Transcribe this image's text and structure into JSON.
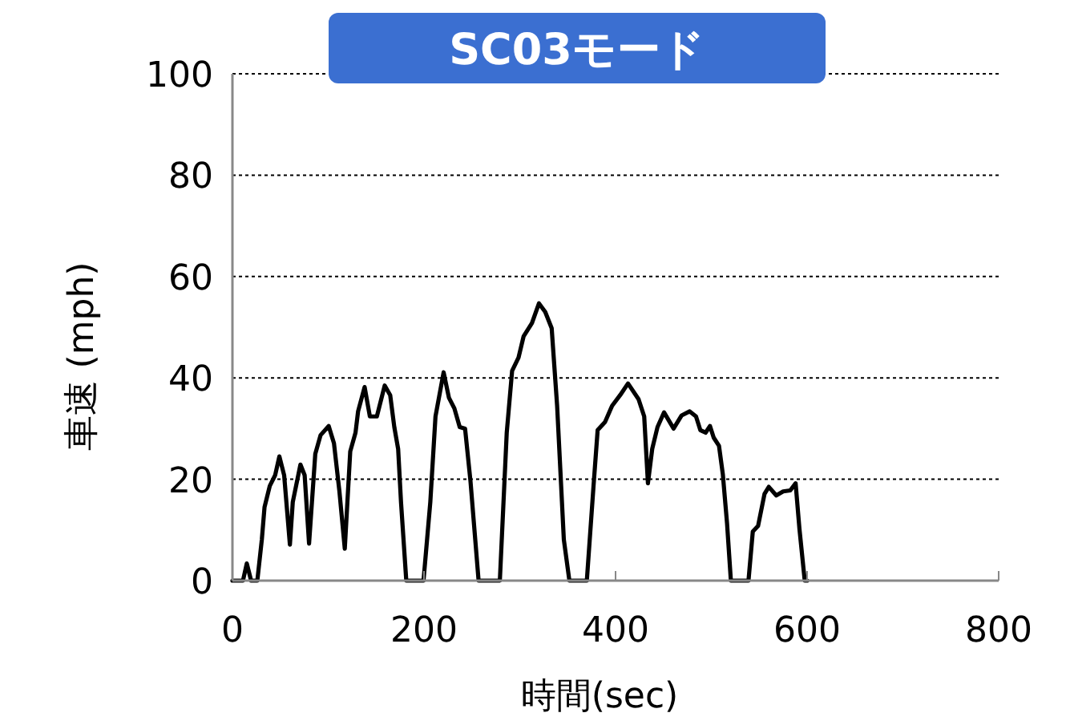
{
  "chart_data": {
    "type": "line",
    "title": "SC03モード",
    "xlabel": "時間(sec)",
    "ylabel": "車速 (mph)",
    "xlim": [
      0,
      800
    ],
    "xticks": [
      0,
      200,
      400,
      600,
      800
    ],
    "ylim": [
      0,
      100
    ],
    "yticks": [
      0,
      20,
      40,
      60,
      80,
      100
    ],
    "grid": "y",
    "line_style": "solid",
    "series": [
      {
        "color": "#000000",
        "x": [
          0,
          11,
          15,
          19.5,
          26,
          30.7,
          33.5,
          39,
          44.6,
          49,
          54,
          60,
          63,
          71,
          75.4,
          80,
          86.5,
          92,
          100.5,
          106,
          111.7,
          117.3,
          123,
          128.5,
          131.2,
          138,
          143.5,
          150.8,
          159,
          164.7,
          169,
          173,
          176,
          181.5,
          199.5,
          206.6,
          212,
          220.5,
          226,
          231.7,
          237.3,
          242.9,
          248.5,
          257,
          279.2,
          286.4,
          292,
          298.7,
          304,
          312.7,
          320,
          326.6,
          333.3,
          339,
          346,
          351.8,
          370,
          377,
          381.3,
          389,
          396.4,
          404.8,
          413,
          424,
          429.9,
          433.8,
          438.3,
          443.8,
          450.6,
          460.6,
          469,
          477.4,
          484,
          488.5,
          494,
          498.6,
          502.5,
          508,
          512,
          516.4,
          520.4,
          538.8,
          543.3,
          548.8,
          555.5,
          560,
          567.8,
          575,
          582.4,
          588,
          592,
          597.5,
          600
        ],
        "values": [
          0,
          0,
          3.4,
          0,
          0,
          8.1,
          14.5,
          18.7,
          20.8,
          24.5,
          20.8,
          7.1,
          15.5,
          22.9,
          20.8,
          7.3,
          25,
          28.7,
          30.5,
          27.1,
          17.6,
          6.3,
          25.5,
          29.2,
          33.4,
          38.2,
          32.4,
          32.4,
          38.5,
          36.6,
          30.3,
          26,
          15.5,
          0,
          0,
          15.5,
          32.4,
          41.1,
          36.1,
          34,
          30.3,
          30,
          19.7,
          0,
          0,
          29.2,
          41.4,
          44,
          48.2,
          50.8,
          54.7,
          53,
          49.8,
          34.5,
          8.1,
          0,
          0,
          18.7,
          29.7,
          31.3,
          34.5,
          36.6,
          38.9,
          35.8,
          32.4,
          19.2,
          26,
          30.3,
          33.2,
          30,
          32.6,
          33.4,
          32.4,
          29.7,
          29.2,
          30.5,
          28.2,
          26.6,
          21,
          11.3,
          0,
          0,
          9.7,
          10.8,
          17.1,
          18.5,
          16.8,
          17.6,
          17.8,
          19.2,
          10.2,
          0,
          0
        ]
      }
    ]
  }
}
